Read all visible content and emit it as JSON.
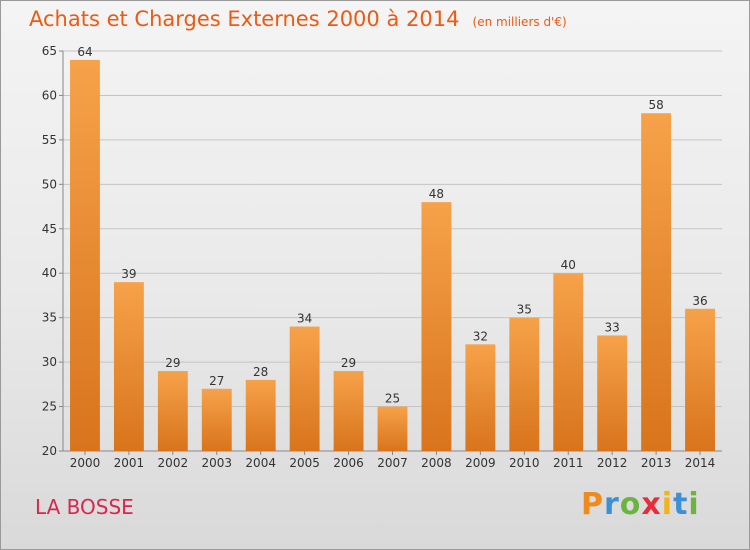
{
  "header": {
    "title": "Achats et Charges Externes 2000 à 2014",
    "unit": "(en milliers d'€)"
  },
  "footer": {
    "commune": "LA BOSSE",
    "brand": "Proxiti"
  },
  "colors": {
    "title": "#ec5b13",
    "commune": "#d8264e",
    "bar_light": "#f6a24a",
    "bar_dark": "#d8741c"
  },
  "chart_data": {
    "type": "bar",
    "title": "Achats et Charges Externes 2000 à 2014",
    "subtitle": "(en milliers d'€)",
    "xlabel": "",
    "ylabel": "",
    "ylim": [
      20,
      65
    ],
    "yticks": [
      20,
      25,
      30,
      35,
      40,
      45,
      50,
      55,
      60,
      65
    ],
    "grid": true,
    "categories": [
      "2000",
      "2001",
      "2002",
      "2003",
      "2004",
      "2005",
      "2006",
      "2007",
      "2008",
      "2009",
      "2010",
      "2011",
      "2012",
      "2013",
      "2014"
    ],
    "values": [
      64,
      39,
      29,
      27,
      28,
      34,
      29,
      25,
      48,
      32,
      35,
      40,
      33,
      58,
      36
    ]
  }
}
